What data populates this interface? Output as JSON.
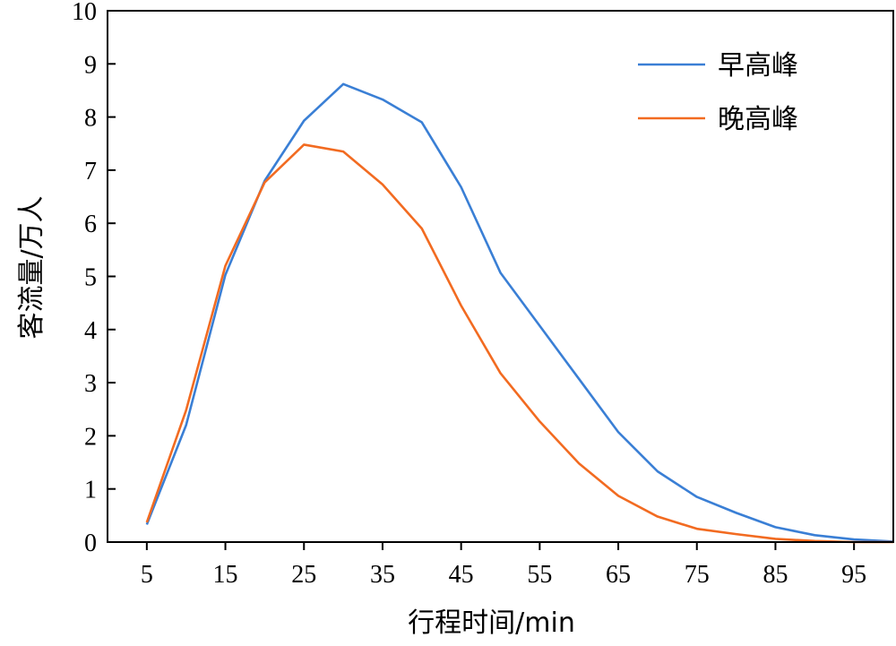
{
  "chart_data": {
    "type": "line",
    "title": "",
    "xlabel": "行程时间/min",
    "ylabel": "客流量/万人",
    "xlim": [
      0,
      100
    ],
    "ylim": [
      0,
      10
    ],
    "xticks": [
      5,
      15,
      25,
      35,
      45,
      55,
      65,
      75,
      85,
      95
    ],
    "yticks": [
      0,
      1,
      2,
      3,
      4,
      5,
      6,
      7,
      8,
      9,
      10
    ],
    "grid": false,
    "legend_position": "top-right",
    "x": [
      5,
      10,
      15,
      20,
      25,
      30,
      35,
      40,
      45,
      50,
      55,
      60,
      65,
      70,
      75,
      80,
      85,
      90,
      95,
      100
    ],
    "series": [
      {
        "name": "早高峰",
        "color": "#3a7fd5",
        "values": [
          0.33,
          2.2,
          5.03,
          6.8,
          7.93,
          8.62,
          8.33,
          7.9,
          6.68,
          5.07,
          4.07,
          3.07,
          2.07,
          1.33,
          0.85,
          0.55,
          0.28,
          0.13,
          0.05,
          0.01
        ]
      },
      {
        "name": "晚高峰",
        "color": "#f26b21",
        "values": [
          0.37,
          2.48,
          5.2,
          6.77,
          7.48,
          7.35,
          6.73,
          5.9,
          4.45,
          3.18,
          2.27,
          1.48,
          0.87,
          0.48,
          0.25,
          0.15,
          0.06,
          0.02,
          0.0,
          0.0
        ]
      }
    ]
  }
}
